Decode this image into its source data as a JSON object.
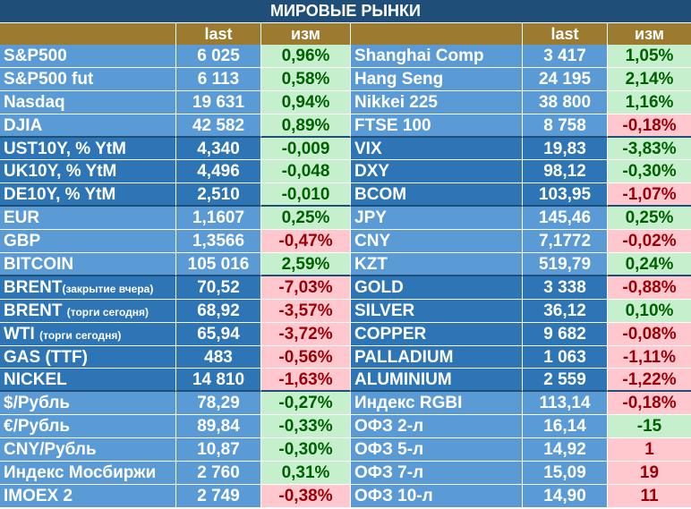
{
  "title": "МИРОВЫЕ РЫНКИ",
  "headers": {
    "last": "last",
    "change": "изм"
  },
  "colors": {
    "title_bg": "#1f4e79",
    "header_bg": "#9c7a2f",
    "light_blue": "#5b9bd5",
    "dark_blue": "#2e75b6",
    "positive_bg": "#c6efce",
    "positive_text": "#006100",
    "negative_bg": "#ffc7ce",
    "negative_text": "#9c0006"
  },
  "rows": [
    {
      "n1": "S&P500",
      "v1": "6 025",
      "c1": "0,96%",
      "s1": "pos",
      "n2": "Shanghai Comp",
      "v2": "3 417",
      "c2": "1,05%",
      "s2": "pos",
      "group": "light",
      "last": false
    },
    {
      "n1": "S&P500 fut",
      "v1": "6 113",
      "c1": "0,58%",
      "s1": "pos",
      "n2": "Hang Seng",
      "v2": "24 195",
      "c2": "2,14%",
      "s2": "pos",
      "group": "light",
      "last": false
    },
    {
      "n1": "Nasdaq",
      "v1": "19 631",
      "c1": "0,94%",
      "s1": "pos",
      "n2": "Nikkei 225",
      "v2": "38 800",
      "c2": "1,16%",
      "s2": "pos",
      "group": "light",
      "last": false
    },
    {
      "n1": "DJIA",
      "v1": "42 582",
      "c1": "0,89%",
      "s1": "pos",
      "n2": "FTSE 100",
      "v2": "8 758",
      "c2": "-0,18%",
      "s2": "neg",
      "group": "light",
      "last": true
    },
    {
      "n1": "UST10Y, % YtM",
      "v1": "4,340",
      "c1": "-0,009",
      "s1": "pos",
      "n2": "VIX",
      "v2": "19,83",
      "c2": "-3,83%",
      "s2": "pos",
      "group": "dark",
      "last": false
    },
    {
      "n1": "UK10Y, % YtM",
      "v1": "4,496",
      "c1": "-0,048",
      "s1": "pos",
      "n2": "DXY",
      "v2": "98,12",
      "c2": "-0,30%",
      "s2": "pos",
      "group": "dark",
      "last": false
    },
    {
      "n1": "DE10Y, % YtM",
      "v1": "2,510",
      "c1": "-0,010",
      "s1": "pos",
      "n2": "BCOM",
      "v2": "103,95",
      "c2": "-1,07%",
      "s2": "neg",
      "group": "dark",
      "last": true
    },
    {
      "n1": "EUR",
      "v1": "1,1607",
      "c1": "0,25%",
      "s1": "pos",
      "n2": "JPY",
      "v2": "145,46",
      "c2": "0,25%",
      "s2": "pos",
      "group": "light",
      "last": false
    },
    {
      "n1": "GBP",
      "v1": "1,3566",
      "c1": "-0,47%",
      "s1": "neg",
      "n2": "CNY",
      "v2": "7,1772",
      "c2": "-0,02%",
      "s2": "neg",
      "group": "light",
      "last": false
    },
    {
      "n1": "BITCOIN",
      "v1": "105 016",
      "c1": "2,59%",
      "s1": "pos",
      "n2": "KZT",
      "v2": "519,79",
      "c2": "0,24%",
      "s2": "pos",
      "group": "light",
      "last": true
    },
    {
      "n1": "BRENT",
      "note": "(закрытие вчера)",
      "v1": "70,52",
      "c1": "-7,03%",
      "s1": "neg",
      "n2": "GOLD",
      "v2": "3 338",
      "c2": "-0,88%",
      "s2": "neg",
      "group": "dark",
      "last": false
    },
    {
      "n1": "BRENT",
      "note": "(торги сегодня)",
      "v1": "68,92",
      "c1": "-3,57%",
      "s1": "neg",
      "n2": "SILVER",
      "v2": "36,12",
      "c2": "0,10%",
      "s2": "pos",
      "group": "dark",
      "last": false
    },
    {
      "n1": "WTI",
      "note": "(торги сегодня)",
      "v1": "65,94",
      "c1": "-3,72%",
      "s1": "neg",
      "n2": "COPPER",
      "v2": "9 682",
      "c2": "-0,08%",
      "s2": "neg",
      "group": "dark",
      "last": false
    },
    {
      "n1": "GAS (TTF)",
      "v1": "483",
      "c1": "-0,56%",
      "s1": "neg",
      "n2": "PALLADIUM",
      "v2": "1 063",
      "c2": "-1,11%",
      "s2": "neg",
      "group": "dark",
      "last": false
    },
    {
      "n1": "NICKEL",
      "v1": "14 810",
      "c1": "-1,63%",
      "s1": "neg",
      "n2": "ALUMINIUM",
      "v2": "2 559",
      "c2": "-1,22%",
      "s2": "neg",
      "group": "dark",
      "last": true
    },
    {
      "n1": "$/Рубль",
      "v1": "78,29",
      "c1": "-0,27%",
      "s1": "pos",
      "n2": "Индекс RGBI",
      "v2": "113,14",
      "c2": "-0,18%",
      "s2": "neg",
      "group": "light",
      "last": false
    },
    {
      "n1": "€/Рубль",
      "v1": "89,84",
      "c1": "-0,33%",
      "s1": "pos",
      "n2": "ОФЗ 2-л",
      "v2": "16,14",
      "c2": "-15",
      "s2": "pos",
      "group": "light",
      "last": false
    },
    {
      "n1": "CNY/Рубль",
      "v1": "10,87",
      "c1": "-0,30%",
      "s1": "pos",
      "n2": "ОФЗ 5-л",
      "v2": "14,92",
      "c2": "1",
      "s2": "neg",
      "group": "light",
      "last": false
    },
    {
      "n1": "Индекс Мосбиржи",
      "v1": "2 760",
      "c1": "0,31%",
      "s1": "pos",
      "n2": "ОФЗ 7-л",
      "v2": "15,09",
      "c2": "19",
      "s2": "neg",
      "group": "light",
      "last": false
    },
    {
      "n1": "IMOEX 2",
      "v1": "2 749",
      "c1": "-0,38%",
      "s1": "neg",
      "n2": "ОФЗ 10-л",
      "v2": "14,90",
      "c2": "11",
      "s2": "neg",
      "group": "light",
      "last": false
    }
  ]
}
